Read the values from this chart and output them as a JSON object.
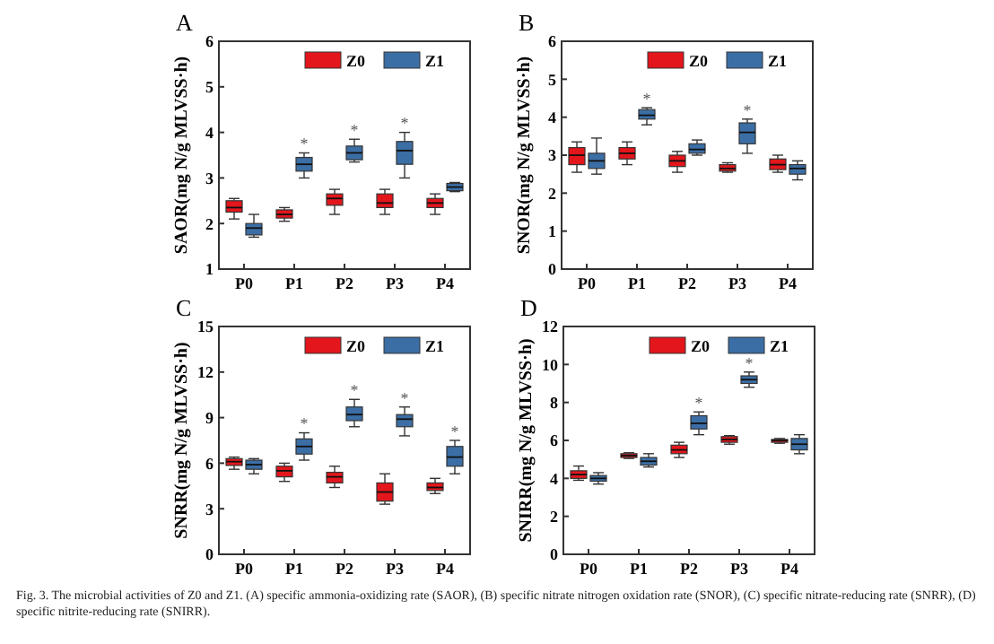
{
  "chart_data": [
    {
      "type": "box",
      "title": "A",
      "ylabel": "SAOR(mg N/g MLVSS·h)",
      "categories": [
        "P0",
        "P1",
        "P2",
        "P3",
        "P4"
      ],
      "ylim": [
        1,
        6
      ],
      "yticks": [
        1,
        2,
        3,
        4,
        5,
        6
      ],
      "legend": "top right",
      "series": [
        {
          "name": "Z0",
          "color": "#e3161c",
          "boxes": [
            {
              "low": 2.1,
              "q1": 2.25,
              "median": 2.35,
              "q3": 2.5,
              "high": 2.55
            },
            {
              "low": 2.05,
              "q1": 2.12,
              "median": 2.2,
              "q3": 2.3,
              "high": 2.35
            },
            {
              "low": 2.2,
              "q1": 2.4,
              "median": 2.55,
              "q3": 2.65,
              "high": 2.75
            },
            {
              "low": 2.2,
              "q1": 2.35,
              "median": 2.45,
              "q3": 2.65,
              "high": 2.75
            },
            {
              "low": 2.2,
              "q1": 2.35,
              "median": 2.45,
              "q3": 2.55,
              "high": 2.65
            }
          ]
        },
        {
          "name": "Z1",
          "color": "#3b6ea5",
          "boxes": [
            {
              "low": 1.7,
              "q1": 1.75,
              "median": 1.9,
              "q3": 2.0,
              "high": 2.2
            },
            {
              "low": 3.0,
              "q1": 3.15,
              "median": 3.3,
              "q3": 3.45,
              "high": 3.55
            },
            {
              "low": 3.35,
              "q1": 3.4,
              "median": 3.55,
              "q3": 3.7,
              "high": 3.85
            },
            {
              "low": 3.0,
              "q1": 3.3,
              "median": 3.6,
              "q3": 3.8,
              "high": 4.0
            },
            {
              "low": 2.7,
              "q1": 2.72,
              "median": 2.8,
              "q3": 2.88,
              "high": 2.9
            }
          ]
        }
      ],
      "annotations": [
        {
          "text": "*",
          "x": "P1",
          "y": 3.55
        },
        {
          "text": "*",
          "x": "P2",
          "y": 3.85
        },
        {
          "text": "*",
          "x": "P3",
          "y": 4.0
        }
      ]
    },
    {
      "type": "box",
      "title": "B",
      "ylabel": "SNOR(mg N/g MLVSS·h)",
      "categories": [
        "P0",
        "P1",
        "P2",
        "P3",
        "P4"
      ],
      "ylim": [
        0,
        6
      ],
      "yticks": [
        0,
        1,
        2,
        3,
        4,
        5,
        6
      ],
      "legend": "top right",
      "series": [
        {
          "name": "Z0",
          "color": "#e3161c",
          "boxes": [
            {
              "low": 2.55,
              "q1": 2.75,
              "median": 3.0,
              "q3": 3.2,
              "high": 3.35
            },
            {
              "low": 2.75,
              "q1": 2.9,
              "median": 3.05,
              "q3": 3.2,
              "high": 3.35
            },
            {
              "low": 2.55,
              "q1": 2.7,
              "median": 2.85,
              "q3": 3.0,
              "high": 3.1
            },
            {
              "low": 2.55,
              "q1": 2.58,
              "median": 2.65,
              "q3": 2.75,
              "high": 2.8
            },
            {
              "low": 2.55,
              "q1": 2.62,
              "median": 2.75,
              "q3": 2.9,
              "high": 3.0
            }
          ]
        },
        {
          "name": "Z1",
          "color": "#3b6ea5",
          "boxes": [
            {
              "low": 2.5,
              "q1": 2.65,
              "median": 2.85,
              "q3": 3.05,
              "high": 3.45
            },
            {
              "low": 3.8,
              "q1": 3.95,
              "median": 4.05,
              "q3": 4.2,
              "high": 4.25
            },
            {
              "low": 3.0,
              "q1": 3.05,
              "median": 3.15,
              "q3": 3.3,
              "high": 3.4
            },
            {
              "low": 3.05,
              "q1": 3.3,
              "median": 3.6,
              "q3": 3.85,
              "high": 3.95
            },
            {
              "low": 2.35,
              "q1": 2.5,
              "median": 2.65,
              "q3": 2.75,
              "high": 2.85
            }
          ]
        }
      ],
      "annotations": [
        {
          "text": "*",
          "x": "P1",
          "y": 4.25
        },
        {
          "text": "*",
          "x": "P3",
          "y": 3.95
        }
      ]
    },
    {
      "type": "box",
      "title": "C",
      "ylabel": "SNRR(mg N/g MLVSS·h)",
      "categories": [
        "P0",
        "P1",
        "P2",
        "P3",
        "P4"
      ],
      "ylim": [
        0,
        15
      ],
      "yticks": [
        0,
        3,
        6,
        9,
        12,
        15
      ],
      "legend": "top right",
      "series": [
        {
          "name": "Z0",
          "color": "#e3161c",
          "boxes": [
            {
              "low": 5.6,
              "q1": 5.85,
              "median": 6.1,
              "q3": 6.3,
              "high": 6.4
            },
            {
              "low": 4.8,
              "q1": 5.1,
              "median": 5.5,
              "q3": 5.8,
              "high": 6.0
            },
            {
              "low": 4.4,
              "q1": 4.7,
              "median": 5.1,
              "q3": 5.4,
              "high": 5.8
            },
            {
              "low": 3.3,
              "q1": 3.5,
              "median": 4.1,
              "q3": 4.7,
              "high": 5.3
            },
            {
              "low": 4.0,
              "q1": 4.2,
              "median": 4.4,
              "q3": 4.7,
              "high": 5.0
            }
          ]
        },
        {
          "name": "Z1",
          "color": "#3b6ea5",
          "boxes": [
            {
              "low": 5.3,
              "q1": 5.6,
              "median": 5.9,
              "q3": 6.2,
              "high": 6.3
            },
            {
              "low": 6.2,
              "q1": 6.6,
              "median": 7.1,
              "q3": 7.6,
              "high": 8.0
            },
            {
              "low": 8.4,
              "q1": 8.8,
              "median": 9.2,
              "q3": 9.7,
              "high": 10.2
            },
            {
              "low": 7.8,
              "q1": 8.4,
              "median": 8.9,
              "q3": 9.2,
              "high": 9.7
            },
            {
              "low": 5.3,
              "q1": 5.8,
              "median": 6.4,
              "q3": 7.1,
              "high": 7.5
            }
          ]
        }
      ],
      "annotations": [
        {
          "text": "*",
          "x": "P1",
          "y": 8.0
        },
        {
          "text": "*",
          "x": "P2",
          "y": 10.2
        },
        {
          "text": "*",
          "x": "P3",
          "y": 9.7
        },
        {
          "text": "*",
          "x": "P4",
          "y": 7.5
        }
      ]
    },
    {
      "type": "box",
      "title": "D",
      "ylabel": "SNIRR(mg N/g MLVSS·h)",
      "categories": [
        "P0",
        "P1",
        "P2",
        "P3",
        "P4"
      ],
      "ylim": [
        0,
        12
      ],
      "yticks": [
        0,
        2,
        4,
        6,
        8,
        10,
        12
      ],
      "legend": "top right",
      "series": [
        {
          "name": "Z0",
          "color": "#e3161c",
          "boxes": [
            {
              "low": 3.9,
              "q1": 4.0,
              "median": 4.2,
              "q3": 4.4,
              "high": 4.65
            },
            {
              "low": 5.05,
              "q1": 5.1,
              "median": 5.2,
              "q3": 5.3,
              "high": 5.35
            },
            {
              "low": 5.1,
              "q1": 5.3,
              "median": 5.5,
              "q3": 5.75,
              "high": 5.9
            },
            {
              "low": 5.8,
              "q1": 5.9,
              "median": 6.05,
              "q3": 6.2,
              "high": 6.25
            },
            {
              "low": 5.85,
              "q1": 5.9,
              "median": 6.0,
              "q3": 6.05,
              "high": 6.1
            }
          ]
        },
        {
          "name": "Z1",
          "color": "#3b6ea5",
          "boxes": [
            {
              "low": 3.7,
              "q1": 3.85,
              "median": 4.0,
              "q3": 4.15,
              "high": 4.3
            },
            {
              "low": 4.6,
              "q1": 4.7,
              "median": 4.9,
              "q3": 5.1,
              "high": 5.3
            },
            {
              "low": 6.3,
              "q1": 6.6,
              "median": 6.9,
              "q3": 7.3,
              "high": 7.5
            },
            {
              "low": 8.8,
              "q1": 9.0,
              "median": 9.2,
              "q3": 9.4,
              "high": 9.6
            },
            {
              "low": 5.3,
              "q1": 5.5,
              "median": 5.8,
              "q3": 6.1,
              "high": 6.3
            }
          ]
        }
      ],
      "annotations": [
        {
          "text": "*",
          "x": "P2",
          "y": 7.5
        },
        {
          "text": "*",
          "x": "P3",
          "y": 9.6
        },
        "Fig. 3. The microbial activities of Z0 and Z1. (A) specific ammonia-oxidizing rate (SAOR), (B) specific nitrate nitrogen oxidation rate (SNOR), (C) specific nitrate-reducing rate (SNRR), (D) specific nitrite-reducing rate (SNIRR)."
      ]
    }
  ]
}
